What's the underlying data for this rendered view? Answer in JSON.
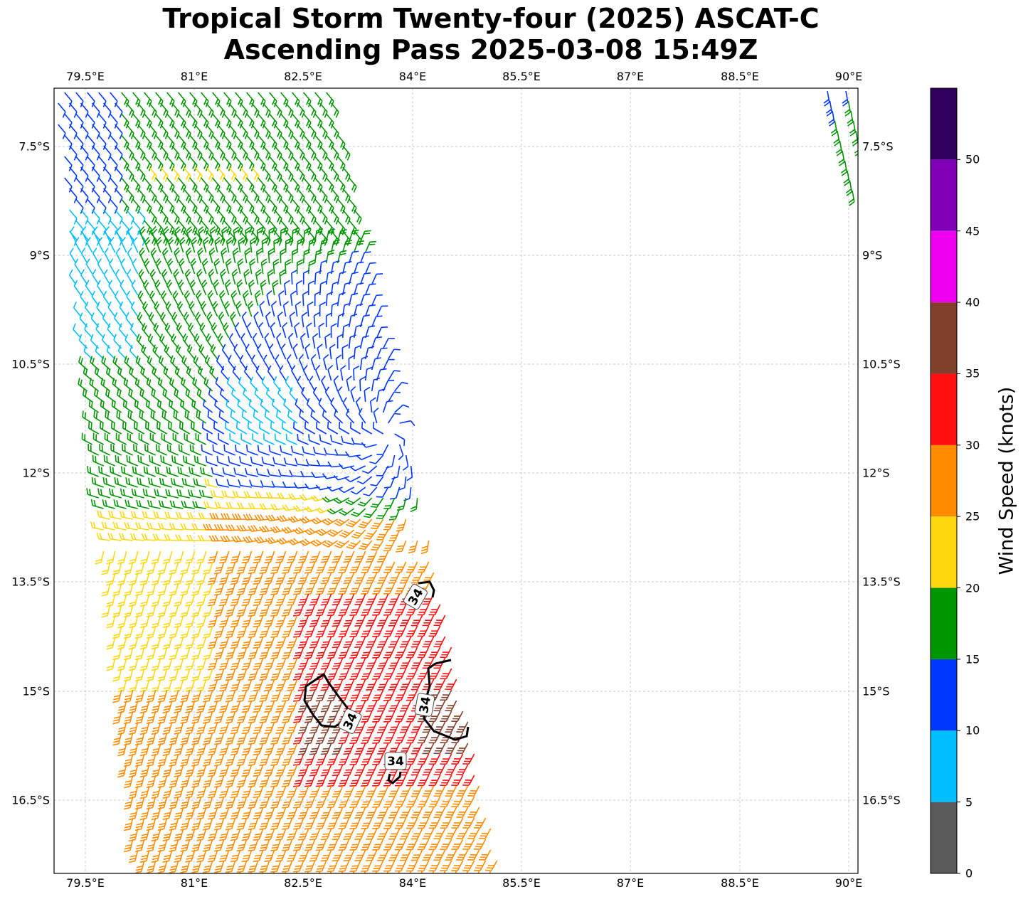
{
  "title": {
    "line1": "Tropical Storm Twenty-four (2025) ASCAT-C",
    "line2": "Ascending Pass 2025-03-08 15:49Z"
  },
  "map": {
    "lon_ticks": [
      "79.5°E",
      "81°E",
      "82.5°E",
      "84°E",
      "85.5°E",
      "87°E",
      "88.5°E",
      "90°E"
    ],
    "lat_ticks": [
      "7.5°S",
      "9°S",
      "10.5°S",
      "12°S",
      "13.5°S",
      "15°S",
      "16.5°S"
    ],
    "lon_range": [
      79.07,
      90.13
    ],
    "lat_range": [
      -17.5,
      -6.7
    ],
    "grid": true
  },
  "colorbar": {
    "label": "Wind Speed (knots)",
    "ticks": [
      "0",
      "5",
      "10",
      "15",
      "20",
      "25",
      "30",
      "35",
      "40",
      "45",
      "50"
    ],
    "bins": [
      {
        "min": 0,
        "max": 5,
        "color": "#595959"
      },
      {
        "min": 5,
        "max": 10,
        "color": "#00bfff"
      },
      {
        "min": 10,
        "max": 15,
        "color": "#0037ff"
      },
      {
        "min": 15,
        "max": 20,
        "color": "#009600"
      },
      {
        "min": 20,
        "max": 25,
        "color": "#ffd70f"
      },
      {
        "min": 25,
        "max": 30,
        "color": "#ff8c00"
      },
      {
        "min": 30,
        "max": 35,
        "color": "#ff0f0f"
      },
      {
        "min": 35,
        "max": 40,
        "color": "#823f2c"
      },
      {
        "min": 40,
        "max": 45,
        "color": "#f000f0"
      },
      {
        "min": 45,
        "max": 50,
        "color": "#8000b8"
      },
      {
        "min": 50,
        "max": 55,
        "color": "#30005f"
      }
    ]
  },
  "contour_label": "34"
}
